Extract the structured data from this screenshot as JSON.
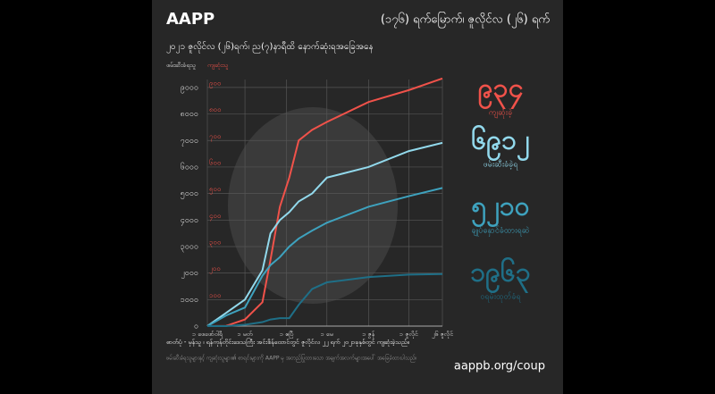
{
  "header": {
    "brand": "AAPP",
    "day_title": "(၁၇၆) ရက်မြောက်၊ ဇူလိုင်လ (၂၆) ရက်"
  },
  "chart_data": {
    "type": "line",
    "subtitle": "၂၀၂၁ ဇူလိုင်လ (၂၆)ရက်၊ ည(၇)နာရီထိ နောက်ဆုံးရအခြေအနေ",
    "y_label": "ဖမ်းဆီးခံရသူ",
    "y2_label": "ကျဆုံးသူ",
    "x": [
      "2021-02-01",
      "2021-02-15",
      "2021-03-01",
      "2021-03-14",
      "2021-03-20",
      "2021-03-27",
      "2021-04-03",
      "2021-04-10",
      "2021-04-20",
      "2021-05-01",
      "2021-06-01",
      "2021-07-01",
      "2021-07-26"
    ],
    "xlim": [
      "2021-02-01",
      "2021-07-26"
    ],
    "xticks": [
      {
        "value": "2021-02-01",
        "label": "၁ ဖေဖော်ဝါရီ"
      },
      {
        "value": "2021-03-01",
        "label": "၁ မတ်"
      },
      {
        "value": "2021-04-01",
        "label": "၁ ဧပြီ"
      },
      {
        "value": "2021-05-01",
        "label": "၁ မေ"
      },
      {
        "value": "2021-06-01",
        "label": "၁ ဇွန်"
      },
      {
        "value": "2021-07-01",
        "label": "၁ ဇူလိုင်"
      },
      {
        "value": "2021-07-26",
        "label": "၂၆ ဇူလိုင်"
      }
    ],
    "ylim": [
      0,
      9300
    ],
    "yticks": [
      {
        "value": 0,
        "label": "၀"
      },
      {
        "value": 1000,
        "label": "၁၀၀၀"
      },
      {
        "value": 2000,
        "label": "၂၀၀၀"
      },
      {
        "value": 3000,
        "label": "၃၀၀၀"
      },
      {
        "value": 4000,
        "label": "၄၀၀၀"
      },
      {
        "value": 5000,
        "label": "၅၀၀၀"
      },
      {
        "value": 6000,
        "label": "၆၀၀၀"
      },
      {
        "value": 7000,
        "label": "၇၀၀၀"
      },
      {
        "value": 8000,
        "label": "၈၀၀၀"
      },
      {
        "value": 9000,
        "label": "၉၀၀၀"
      }
    ],
    "y2lim": [
      0,
      930
    ],
    "y2ticks": [
      {
        "value": 100,
        "label": "၁၀၀"
      },
      {
        "value": 200,
        "label": "၂၀၀"
      },
      {
        "value": 300,
        "label": "၃၀၀"
      },
      {
        "value": 400,
        "label": "၄၀၀"
      },
      {
        "value": 500,
        "label": "၅၀၀"
      },
      {
        "value": 600,
        "label": "၆၀၀"
      },
      {
        "value": 700,
        "label": "၇၀၀"
      },
      {
        "value": 800,
        "label": "၈၀၀"
      },
      {
        "value": 900,
        "label": "၉၀၀"
      }
    ],
    "grid": true,
    "series": [
      {
        "name": "ကျဆုံးခဲ့",
        "color": "#f0524a",
        "axis": "y2",
        "values": [
          0,
          1,
          25,
          90,
          250,
          450,
          560,
          700,
          740,
          770,
          845,
          890,
          934
        ],
        "value_labels": [
          null,
          null,
          null,
          null,
          null,
          null,
          null,
          null,
          null,
          null,
          null,
          null,
          "၉၃၄"
        ]
      },
      {
        "name": "ဖမ်းဆီးခံခဲ့ရ",
        "color": "#92d9ec",
        "values": [
          0,
          500,
          1000,
          2100,
          3500,
          4000,
          4300,
          4700,
          5000,
          5600,
          6000,
          6600,
          6912
        ],
        "value_labels": [
          null,
          null,
          null,
          null,
          null,
          null,
          null,
          null,
          null,
          null,
          null,
          null,
          "၆၉၁၂"
        ]
      },
      {
        "name": "ချုပ်နှောင်ခံထားရဆဲ",
        "color": "#3ea2be",
        "values": [
          0,
          400,
          700,
          1900,
          2300,
          2600,
          3000,
          3300,
          3600,
          3900,
          4500,
          4900,
          5210
        ],
        "value_labels": [
          null,
          null,
          null,
          null,
          null,
          null,
          null,
          null,
          null,
          null,
          null,
          null,
          "၅၂၁၀"
        ]
      },
      {
        "name": "ဝရမ်းထုတ်ခံရ",
        "color": "#1f6f87",
        "values": [
          0,
          0,
          50,
          150,
          250,
          300,
          300,
          800,
          1400,
          1650,
          1850,
          1940,
          1963
        ],
        "value_labels": [
          null,
          null,
          null,
          null,
          null,
          null,
          null,
          null,
          null,
          null,
          null,
          null,
          "၁၉၆၃"
        ]
      }
    ]
  },
  "footer": {
    "source": "ဓာတ်ပုံ - မှန်သူ ၊ ရန်ကုန်တိုင်းဒေသကြီး အင်းစိန်ထောင်တွင် ဇူလိုင်လ ၂၂ ရက် ၂၀၂၁ခုနှစ်တွင် ကျဆုံးခဲ့သည်။",
    "note": "ဖမ်းဆီးခံရသူများနှင့် ကျဆုံးသူများ၏ စာရင်းများကို AAPP မှ အတည်ပြုထားသော အချက်အလက်များအပေါ် အခြေခံထားပါသည်။",
    "url": "aappb.org/coup"
  }
}
